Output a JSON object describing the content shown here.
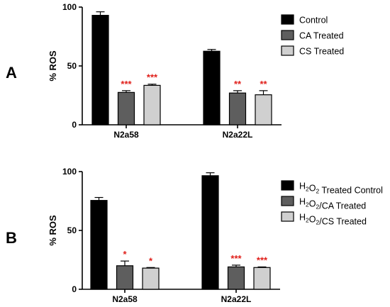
{
  "chart_data": [
    {
      "type": "bar",
      "panel_label": "A",
      "ylabel": "% ROS",
      "ylim": [
        0,
        100
      ],
      "yticks": [
        "0",
        "50",
        "100"
      ],
      "categories": [
        "N2a58",
        "N2a22L"
      ],
      "legend_position": "right",
      "series": [
        {
          "name": "Control",
          "values": [
            93,
            62.5
          ],
          "errors": [
            3,
            1.5
          ],
          "significance": [
            "",
            ""
          ],
          "color": "#000000"
        },
        {
          "name": "CA Treated",
          "values": [
            27.5,
            27
          ],
          "errors": [
            1.5,
            2
          ],
          "significance": [
            "***",
            "**"
          ],
          "color": "#5e5e5e"
        },
        {
          "name": "CS Treated",
          "values": [
            33.5,
            25.5
          ],
          "errors": [
            1,
            3.5
          ],
          "significance": [
            "***",
            "**"
          ],
          "color": "#d0d0d0"
        }
      ]
    },
    {
      "type": "bar",
      "panel_label": "B",
      "ylabel": "% ROS",
      "ylim": [
        0,
        100
      ],
      "yticks": [
        "0",
        "50",
        "100"
      ],
      "categories": [
        "N2a58",
        "N2a22L"
      ],
      "legend_position": "right",
      "series": [
        {
          "name": "H2O2 Treated Control",
          "legend_parts": [
            "H",
            "2",
            "O",
            "2",
            " Treated Control"
          ],
          "values": [
            75.5,
            96.5
          ],
          "errors": [
            2.5,
            2.5
          ],
          "significance": [
            "",
            ""
          ],
          "color": "#000000"
        },
        {
          "name": "H2O2/CA Treated",
          "legend_parts": [
            "H",
            "2",
            "O",
            "2",
            "/CA Treated"
          ],
          "values": [
            20,
            19
          ],
          "errors": [
            4,
            1.5
          ],
          "significance": [
            "*",
            "***"
          ],
          "color": "#5e5e5e"
        },
        {
          "name": "H2O2/CS Treated",
          "legend_parts": [
            "H",
            "2",
            "O",
            "2",
            "/CS Treated"
          ],
          "values": [
            18,
            18.5
          ],
          "errors": [
            0.5,
            0.5
          ],
          "significance": [
            "*",
            "***"
          ],
          "color": "#d0d0d0"
        }
      ]
    }
  ]
}
